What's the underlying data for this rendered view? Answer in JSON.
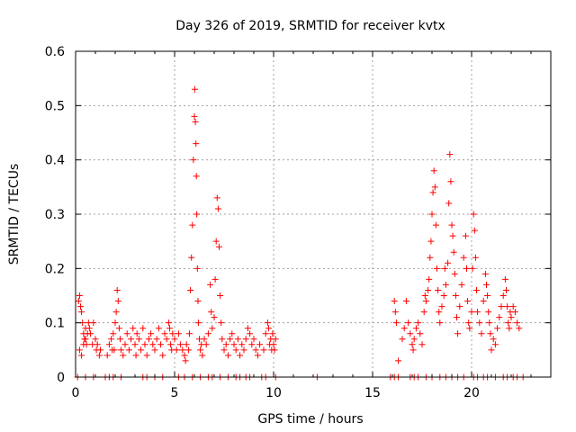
{
  "chart_data": {
    "type": "scatter",
    "title": "Day 326 of 2019, SRMTID for receiver kvtx",
    "xlabel": "GPS time / hours",
    "ylabel": "SRMTID / TECUs",
    "xlim": [
      0,
      24
    ],
    "ylim": [
      0,
      0.6
    ],
    "x_ticks": [
      0,
      5,
      10,
      15,
      20
    ],
    "x_tick_labels": [
      "0",
      "5",
      "10",
      "15",
      "20"
    ],
    "y_ticks": [
      0,
      0.1,
      0.2,
      0.3,
      0.4,
      0.5,
      0.6
    ],
    "y_tick_labels": [
      "0",
      "0.1",
      "0.2",
      "0.3",
      "0.4",
      "0.5",
      "0.6"
    ],
    "grid": true,
    "marker": "+",
    "series_color": "#ff0000",
    "grid_color": "#a0a0a0",
    "series": [
      {
        "name": "SRMTID",
        "points": [
          [
            0.15,
            0.14
          ],
          [
            0.2,
            0.15
          ],
          [
            0.25,
            0.13
          ],
          [
            0.3,
            0.12
          ],
          [
            0.35,
            0.1
          ],
          [
            0.4,
            0.08
          ],
          [
            0.45,
            0.07
          ],
          [
            0.5,
            0.09
          ],
          [
            0.55,
            0.06
          ],
          [
            0.6,
            0.08
          ],
          [
            0.2,
            0.05
          ],
          [
            0.3,
            0.04
          ],
          [
            0.4,
            0.06
          ],
          [
            0.5,
            0.07
          ],
          [
            0.65,
            0.1
          ],
          [
            0.7,
            0.09
          ],
          [
            0.75,
            0.08
          ],
          [
            0.85,
            0.06
          ],
          [
            0.9,
            0.1
          ],
          [
            1.0,
            0.07
          ],
          [
            1.05,
            0.05
          ],
          [
            1.1,
            0.06
          ],
          [
            1.2,
            0.04
          ],
          [
            1.25,
            0.05
          ],
          [
            1.6,
            0.04
          ],
          [
            1.7,
            0.06
          ],
          [
            1.8,
            0.07
          ],
          [
            1.85,
            0.05
          ],
          [
            1.9,
            0.08
          ],
          [
            1.95,
            0.05
          ],
          [
            2.0,
            0.1
          ],
          [
            2.05,
            0.12
          ],
          [
            2.1,
            0.16
          ],
          [
            2.15,
            0.14
          ],
          [
            2.2,
            0.09
          ],
          [
            2.25,
            0.07
          ],
          [
            2.3,
            0.05
          ],
          [
            2.4,
            0.04
          ],
          [
            2.5,
            0.06
          ],
          [
            2.6,
            0.08
          ],
          [
            2.7,
            0.05
          ],
          [
            2.8,
            0.07
          ],
          [
            2.9,
            0.09
          ],
          [
            3.0,
            0.06
          ],
          [
            3.05,
            0.04
          ],
          [
            3.1,
            0.08
          ],
          [
            3.2,
            0.07
          ],
          [
            3.3,
            0.05
          ],
          [
            3.4,
            0.09
          ],
          [
            3.5,
            0.06
          ],
          [
            3.6,
            0.04
          ],
          [
            3.7,
            0.07
          ],
          [
            3.8,
            0.08
          ],
          [
            3.9,
            0.06
          ],
          [
            4.0,
            0.05
          ],
          [
            4.1,
            0.07
          ],
          [
            4.2,
            0.09
          ],
          [
            4.3,
            0.06
          ],
          [
            4.4,
            0.04
          ],
          [
            4.5,
            0.08
          ],
          [
            4.6,
            0.07
          ],
          [
            4.7,
            0.1
          ],
          [
            4.75,
            0.09
          ],
          [
            4.8,
            0.06
          ],
          [
            4.85,
            0.05
          ],
          [
            4.9,
            0.08
          ],
          [
            5.0,
            0.07
          ],
          [
            5.1,
            0.05
          ],
          [
            5.2,
            0.08
          ],
          [
            5.3,
            0.06
          ],
          [
            5.4,
            0.05
          ],
          [
            5.5,
            0.04
          ],
          [
            5.55,
            0.03
          ],
          [
            5.6,
            0.06
          ],
          [
            5.7,
            0.05
          ],
          [
            5.75,
            0.08
          ],
          [
            5.8,
            0.16
          ],
          [
            5.85,
            0.22
          ],
          [
            5.9,
            0.28
          ],
          [
            5.95,
            0.4
          ],
          [
            6.0,
            0.48
          ],
          [
            6.02,
            0.53
          ],
          [
            6.05,
            0.47
          ],
          [
            6.08,
            0.43
          ],
          [
            6.1,
            0.37
          ],
          [
            6.12,
            0.3
          ],
          [
            6.15,
            0.2
          ],
          [
            6.18,
            0.14
          ],
          [
            6.2,
            0.1
          ],
          [
            6.25,
            0.07
          ],
          [
            6.3,
            0.05
          ],
          [
            6.35,
            0.06
          ],
          [
            6.4,
            0.04
          ],
          [
            6.5,
            0.07
          ],
          [
            6.6,
            0.06
          ],
          [
            6.7,
            0.08
          ],
          [
            6.8,
            0.17
          ],
          [
            6.85,
            0.12
          ],
          [
            6.9,
            0.09
          ],
          [
            7.0,
            0.11
          ],
          [
            7.05,
            0.18
          ],
          [
            7.1,
            0.25
          ],
          [
            7.15,
            0.33
          ],
          [
            7.2,
            0.31
          ],
          [
            7.25,
            0.24
          ],
          [
            7.3,
            0.15
          ],
          [
            7.35,
            0.1
          ],
          [
            7.4,
            0.07
          ],
          [
            7.5,
            0.05
          ],
          [
            7.6,
            0.06
          ],
          [
            7.7,
            0.04
          ],
          [
            7.8,
            0.07
          ],
          [
            7.9,
            0.08
          ],
          [
            8.0,
            0.06
          ],
          [
            8.1,
            0.05
          ],
          [
            8.2,
            0.07
          ],
          [
            8.3,
            0.04
          ],
          [
            8.4,
            0.06
          ],
          [
            8.5,
            0.05
          ],
          [
            8.6,
            0.07
          ],
          [
            8.7,
            0.09
          ],
          [
            8.8,
            0.08
          ],
          [
            8.9,
            0.06
          ],
          [
            9.0,
            0.07
          ],
          [
            9.1,
            0.05
          ],
          [
            9.2,
            0.04
          ],
          [
            9.3,
            0.06
          ],
          [
            9.5,
            0.05
          ],
          [
            9.6,
            0.08
          ],
          [
            9.7,
            0.1
          ],
          [
            9.75,
            0.09
          ],
          [
            9.8,
            0.06
          ],
          [
            9.85,
            0.07
          ],
          [
            9.9,
            0.05
          ],
          [
            9.95,
            0.08
          ],
          [
            10.0,
            0.06
          ],
          [
            10.05,
            0.05
          ],
          [
            10.1,
            0.07
          ],
          [
            16.1,
            0.14
          ],
          [
            16.15,
            0.12
          ],
          [
            16.2,
            0.1
          ],
          [
            16.3,
            0.03
          ],
          [
            16.5,
            0.07
          ],
          [
            16.6,
            0.09
          ],
          [
            16.7,
            0.14
          ],
          [
            16.8,
            0.1
          ],
          [
            16.9,
            0.08
          ],
          [
            17.0,
            0.06
          ],
          [
            17.05,
            0.05
          ],
          [
            17.1,
            0.07
          ],
          [
            17.2,
            0.09
          ],
          [
            17.3,
            0.1
          ],
          [
            17.4,
            0.08
          ],
          [
            17.5,
            0.06
          ],
          [
            17.6,
            0.12
          ],
          [
            17.65,
            0.15
          ],
          [
            17.7,
            0.14
          ],
          [
            17.8,
            0.16
          ],
          [
            17.85,
            0.18
          ],
          [
            17.9,
            0.22
          ],
          [
            17.95,
            0.25
          ],
          [
            18.0,
            0.3
          ],
          [
            18.05,
            0.34
          ],
          [
            18.1,
            0.38
          ],
          [
            18.15,
            0.35
          ],
          [
            18.2,
            0.28
          ],
          [
            18.25,
            0.2
          ],
          [
            18.3,
            0.16
          ],
          [
            18.35,
            0.12
          ],
          [
            18.4,
            0.1
          ],
          [
            18.5,
            0.13
          ],
          [
            18.6,
            0.15
          ],
          [
            18.65,
            0.2
          ],
          [
            18.7,
            0.17
          ],
          [
            18.8,
            0.21
          ],
          [
            18.85,
            0.32
          ],
          [
            18.9,
            0.41
          ],
          [
            18.95,
            0.36
          ],
          [
            19.0,
            0.28
          ],
          [
            19.05,
            0.26
          ],
          [
            19.1,
            0.23
          ],
          [
            19.15,
            0.19
          ],
          [
            19.2,
            0.15
          ],
          [
            19.25,
            0.11
          ],
          [
            19.3,
            0.08
          ],
          [
            19.4,
            0.13
          ],
          [
            19.5,
            0.17
          ],
          [
            19.6,
            0.22
          ],
          [
            19.7,
            0.26
          ],
          [
            19.75,
            0.2
          ],
          [
            19.8,
            0.14
          ],
          [
            19.85,
            0.1
          ],
          [
            19.9,
            0.09
          ],
          [
            20.0,
            0.12
          ],
          [
            20.05,
            0.2
          ],
          [
            20.1,
            0.3
          ],
          [
            20.15,
            0.27
          ],
          [
            20.2,
            0.22
          ],
          [
            20.25,
            0.16
          ],
          [
            20.3,
            0.12
          ],
          [
            20.4,
            0.1
          ],
          [
            20.5,
            0.08
          ],
          [
            20.6,
            0.14
          ],
          [
            20.7,
            0.19
          ],
          [
            20.75,
            0.17
          ],
          [
            20.8,
            0.15
          ],
          [
            20.85,
            0.12
          ],
          [
            20.9,
            0.1
          ],
          [
            20.95,
            0.08
          ],
          [
            21.0,
            0.05
          ],
          [
            21.1,
            0.07
          ],
          [
            21.2,
            0.06
          ],
          [
            21.3,
            0.09
          ],
          [
            21.4,
            0.11
          ],
          [
            21.5,
            0.13
          ],
          [
            21.6,
            0.15
          ],
          [
            21.7,
            0.18
          ],
          [
            21.75,
            0.16
          ],
          [
            21.8,
            0.13
          ],
          [
            21.85,
            0.1
          ],
          [
            21.9,
            0.09
          ],
          [
            21.95,
            0.12
          ],
          [
            22.0,
            0.11
          ],
          [
            22.1,
            0.13
          ],
          [
            22.2,
            0.12
          ],
          [
            22.3,
            0.1
          ],
          [
            22.4,
            0.09
          ],
          [
            0.1,
            0.0
          ],
          [
            0.5,
            0.0
          ],
          [
            0.9,
            0.0
          ],
          [
            1.5,
            0.0
          ],
          [
            1.7,
            0.0
          ],
          [
            1.9,
            0.0
          ],
          [
            2.3,
            0.0
          ],
          [
            3.4,
            0.0
          ],
          [
            3.6,
            0.0
          ],
          [
            4.0,
            0.0
          ],
          [
            4.4,
            0.0
          ],
          [
            5.2,
            0.0
          ],
          [
            5.5,
            0.0
          ],
          [
            5.9,
            0.0
          ],
          [
            6.3,
            0.0
          ],
          [
            6.7,
            0.0
          ],
          [
            6.9,
            0.0
          ],
          [
            7.3,
            0.0
          ],
          [
            7.7,
            0.0
          ],
          [
            8.1,
            0.0
          ],
          [
            8.3,
            0.0
          ],
          [
            8.6,
            0.0
          ],
          [
            8.8,
            0.0
          ],
          [
            9.4,
            0.0
          ],
          [
            9.6,
            0.0
          ],
          [
            10.1,
            0.0
          ],
          [
            12.2,
            0.0
          ],
          [
            15.9,
            0.0
          ],
          [
            16.1,
            0.0
          ],
          [
            16.3,
            0.0
          ],
          [
            16.9,
            0.0
          ],
          [
            17.1,
            0.0
          ],
          [
            17.3,
            0.0
          ],
          [
            17.7,
            0.0
          ],
          [
            18.0,
            0.0
          ],
          [
            18.4,
            0.0
          ],
          [
            18.7,
            0.0
          ],
          [
            19.0,
            0.0
          ],
          [
            19.3,
            0.0
          ],
          [
            19.6,
            0.0
          ],
          [
            20.1,
            0.0
          ],
          [
            20.3,
            0.0
          ],
          [
            20.6,
            0.0
          ],
          [
            20.8,
            0.0
          ],
          [
            21.2,
            0.0
          ],
          [
            21.6,
            0.0
          ],
          [
            21.8,
            0.0
          ],
          [
            22.1,
            0.0
          ],
          [
            22.3,
            0.0
          ],
          [
            22.6,
            0.0
          ]
        ]
      }
    ]
  }
}
